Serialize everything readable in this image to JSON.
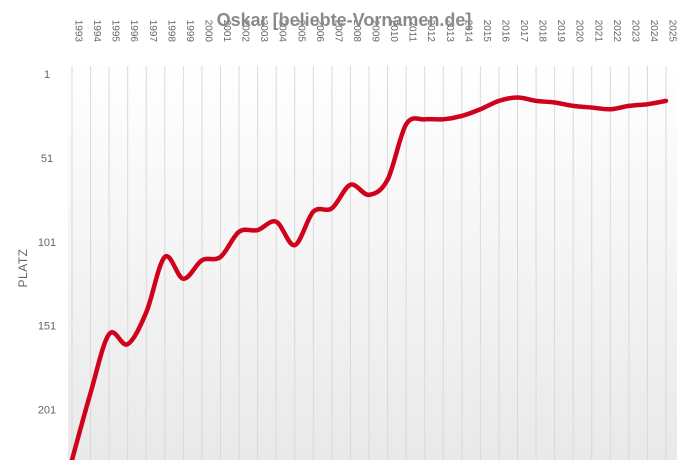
{
  "chart_data": {
    "type": "line",
    "title": "Oskar [beliebte-Vornamen.de]",
    "ylabel": "PLATZ",
    "xlabel": "",
    "y_ticks": [
      1,
      51,
      101,
      151,
      201
    ],
    "ylim": [
      1,
      231
    ],
    "y_inverted": true,
    "grid": "vertical",
    "colors": {
      "line": "#d0021b",
      "background_bottom": "#e9e9e9"
    },
    "x": [
      "1993",
      "1994",
      "1995",
      "1996",
      "1997",
      "1998",
      "1999",
      "2000",
      "2001",
      "2002",
      "2003",
      "2004",
      "2005",
      "2006",
      "2007",
      "2008",
      "2009",
      "2010",
      "2011",
      "2012",
      "2013",
      "2014",
      "2015",
      "2016",
      "2017",
      "2018",
      "2019",
      "2020",
      "2021",
      "2022",
      "2023",
      "2024",
      "2025"
    ],
    "series": [
      {
        "values": [
          231,
          191,
          156,
          162,
          143,
          110,
          123,
          112,
          110,
          95,
          94,
          89,
          103,
          83,
          81,
          67,
          73,
          64,
          31,
          28,
          28,
          26,
          22,
          17,
          15,
          17,
          18,
          20,
          21,
          22,
          20,
          19,
          17
        ]
      }
    ]
  }
}
